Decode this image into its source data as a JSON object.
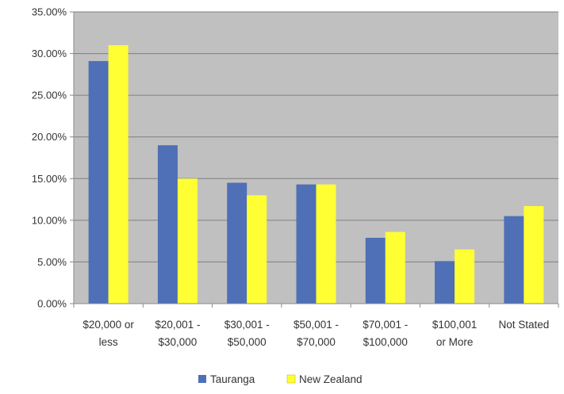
{
  "chart_data": {
    "type": "bar",
    "title": "",
    "xlabel": "",
    "ylabel": "",
    "categories": [
      [
        "$20,000 or",
        "less"
      ],
      [
        "$20,001 -",
        "$30,000"
      ],
      [
        "$30,001 -",
        "$50,000"
      ],
      [
        "$50,001 -",
        "$70,000"
      ],
      [
        "$70,001 -",
        "$100,000"
      ],
      [
        "$100,001",
        "or More"
      ],
      [
        "Not Stated"
      ]
    ],
    "series": [
      {
        "name": "Tauranga",
        "color": "#4F6FB7",
        "values": [
          29.1,
          19.0,
          14.5,
          14.3,
          7.9,
          5.1,
          10.5
        ]
      },
      {
        "name": "New Zealand",
        "color": "#FFFF33",
        "values": [
          31.0,
          15.0,
          13.0,
          14.3,
          8.6,
          6.5,
          11.7
        ]
      }
    ],
    "ylim": [
      0,
      35
    ],
    "yticks": [
      "0.00%",
      "5.00%",
      "10.00%",
      "15.00%",
      "20.00%",
      "25.00%",
      "30.00%",
      "35.00%"
    ],
    "value_format": "percent",
    "grid": true,
    "plot_background": "#C0C0C0",
    "legend_position": "bottom"
  }
}
